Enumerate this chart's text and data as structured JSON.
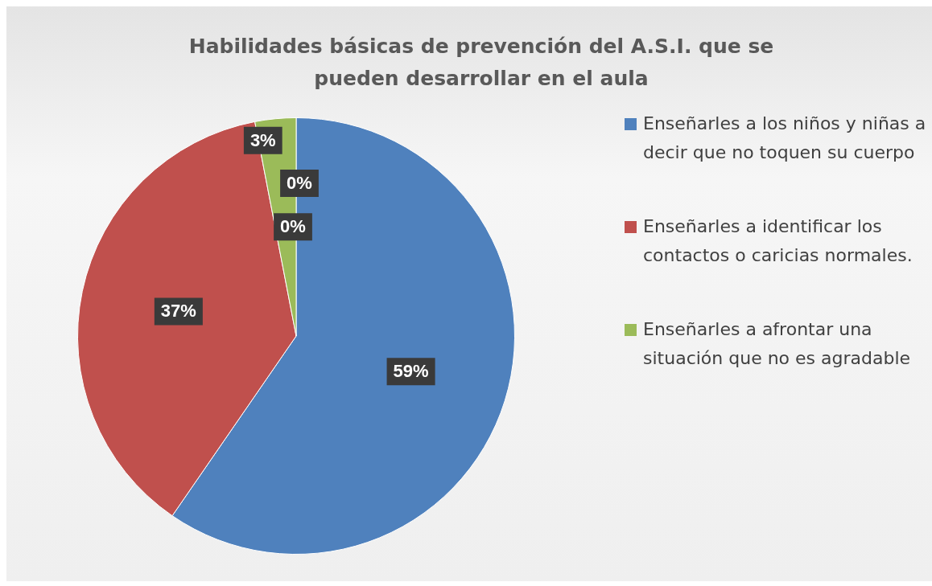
{
  "chart_data": {
    "type": "pie",
    "title": "Habilidades básicas de prevención del A.S.I. que se pueden desarrollar en el aula",
    "categories": [
      "Enseñarles a los niños y niñas a decir que no toquen su cuerpo",
      "Enseñarles a identificar los contactos o caricias normales.",
      "Enseñarles a afrontar una situación que no es agradable",
      null,
      null
    ],
    "values": [
      59,
      37,
      3,
      0,
      0
    ],
    "colors": [
      "#4f81bd",
      "#c0504d",
      "#9bbb59",
      "#8064a2",
      "#4bacc6"
    ],
    "value_labels": [
      "59%",
      "37%",
      "3%",
      "0%",
      "0%"
    ],
    "legend": "right"
  }
}
